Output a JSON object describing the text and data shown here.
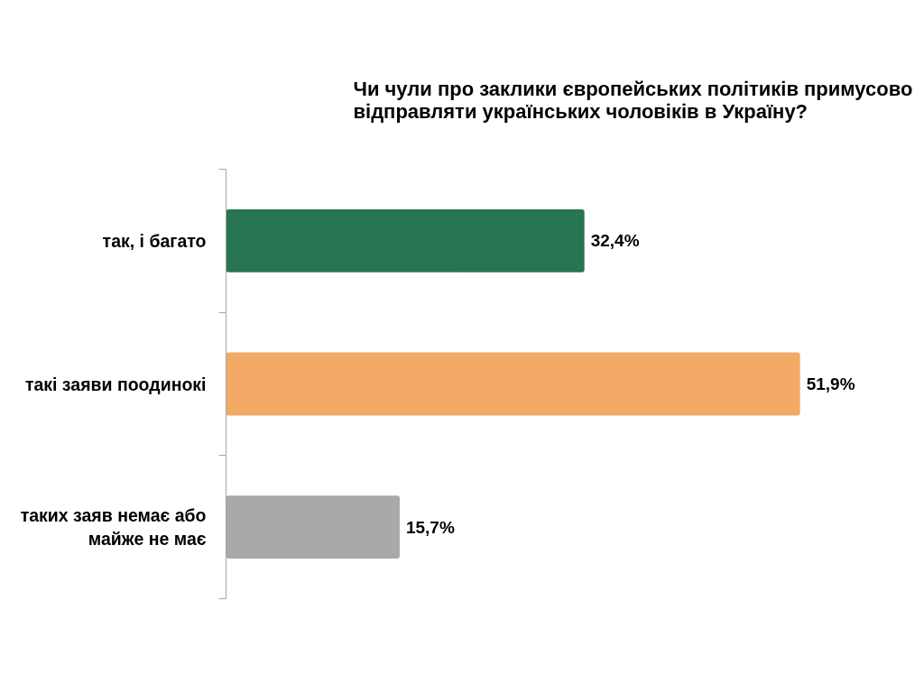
{
  "chart_data": {
    "type": "bar",
    "orientation": "horizontal",
    "title": "Чи чули про заклики європейських політиків примусово відправляти українських чоловіків в Україну?",
    "categories": [
      "так, і багато",
      "такі заяви поодинокі",
      "таких заяв немає або майже не має"
    ],
    "values": [
      32.4,
      51.9,
      15.7
    ],
    "colors": [
      "#287552",
      "#f2aa66",
      "#a9a9a9"
    ],
    "value_labels": [
      "32,4%",
      "51,9%",
      "15,7%"
    ],
    "tick_labels": "y"
  }
}
